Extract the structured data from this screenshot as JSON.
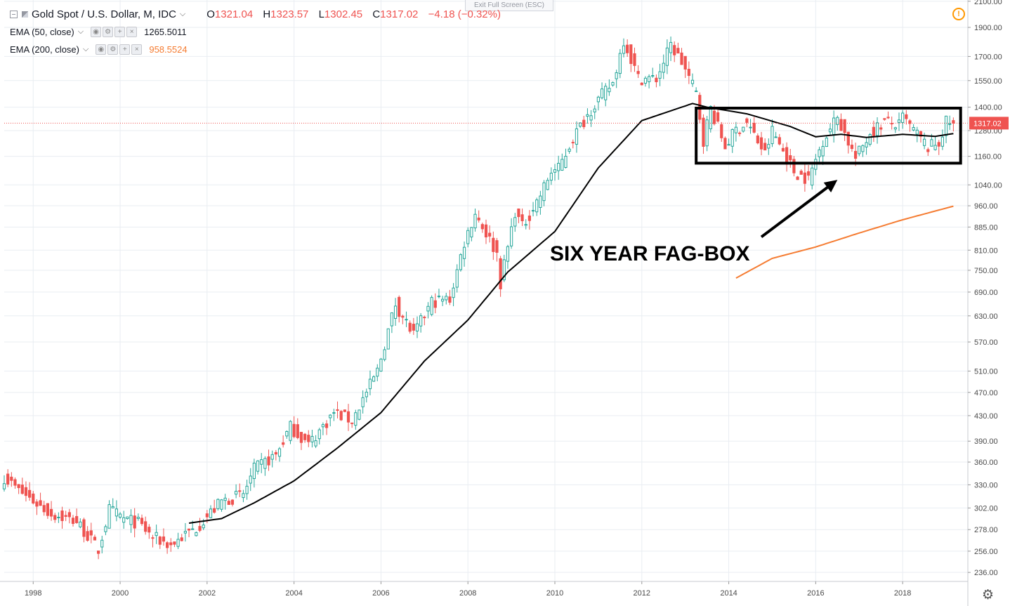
{
  "header": {
    "symbol": "Gold Spot / U.S. Dollar, M, IDC",
    "ohlc": {
      "o_label": "O",
      "o": "1321.04",
      "h_label": "H",
      "h": "1323.57",
      "l_label": "L",
      "l": "1302.45",
      "c_label": "C",
      "c": "1317.02"
    },
    "change": "−4.18 (−0.32%)"
  },
  "indicators": [
    {
      "name": "EMA (50, close)",
      "value": "1265.5011",
      "color": "#131722"
    },
    {
      "name": "EMA (200, close)",
      "value": "958.5524",
      "color": "#f57c32"
    }
  ],
  "exit_fullscreen": "Exit Full Screen (ESC)",
  "icons": {
    "warning": "warning-icon",
    "settings": "gear-icon",
    "collapse": "collapse-icon"
  },
  "colors": {
    "up": "#26a69a",
    "down": "#ef5350",
    "ema50": "#000000",
    "ema200": "#f57c32",
    "price_line": "#ef5350",
    "grid": "#e9edf2"
  },
  "chart_data": {
    "type": "candlestick",
    "timeframe": "monthly",
    "xlim": [
      "1997-05",
      "2019-07"
    ],
    "ylim": [
      228,
      2110
    ],
    "y_scale": "log",
    "grid": true,
    "y_ticks": [
      236,
      256,
      278,
      302,
      330,
      360,
      390,
      430,
      470,
      510,
      570,
      630,
      690,
      750,
      810,
      885,
      960,
      1040,
      1160,
      1280,
      1400,
      1550,
      1700,
      1900,
      2100
    ],
    "y_tick_labels": [
      "236.00",
      "256.00",
      "278.00",
      "302.00",
      "330.00",
      "360.00",
      "390.00",
      "430.00",
      "470.00",
      "510.00",
      "570.00",
      "630.00",
      "690.00",
      "750.00",
      "810.00",
      "885.00",
      "960.00",
      "1040.00",
      "1160.00",
      "1280.00",
      "1400.00",
      "1550.00",
      "1700.00",
      "1900.00",
      "2100.00"
    ],
    "x_ticks": [
      "1998",
      "2000",
      "2002",
      "2004",
      "2006",
      "2008",
      "2010",
      "2012",
      "2014",
      "2016",
      "2018"
    ],
    "last_price": 1317.02,
    "last_price_label": "1317.02",
    "price_anchors": [
      [
        "1997-05",
        340
      ],
      [
        "1997-09",
        323
      ],
      [
        "1998-06",
        295
      ],
      [
        "1999-01",
        287
      ],
      [
        "1999-07",
        257
      ],
      [
        "1999-10",
        300
      ],
      [
        "2000-02",
        290
      ],
      [
        "2000-06",
        285
      ],
      [
        "2000-10",
        270
      ],
      [
        "2001-03",
        262
      ],
      [
        "2001-06",
        270
      ],
      [
        "2001-10",
        280
      ],
      [
        "2002-05",
        310
      ],
      [
        "2002-11",
        318
      ],
      [
        "2003-02",
        350
      ],
      [
        "2003-08",
        370
      ],
      [
        "2003-12",
        412
      ],
      [
        "2004-05",
        385
      ],
      [
        "2004-12",
        435
      ],
      [
        "2005-05",
        422
      ],
      [
        "2005-12",
        510
      ],
      [
        "2006-05",
        660
      ],
      [
        "2006-10",
        585
      ],
      [
        "2007-03",
        665
      ],
      [
        "2007-08",
        672
      ],
      [
        "2007-12",
        835
      ],
      [
        "2008-03",
        935
      ],
      [
        "2008-09",
        800
      ],
      [
        "2008-10",
        715
      ],
      [
        "2009-02",
        940
      ],
      [
        "2009-04",
        885
      ],
      [
        "2009-09",
        1000
      ],
      [
        "2009-12",
        1095
      ],
      [
        "2010-02",
        1105
      ],
      [
        "2010-06",
        1245
      ],
      [
        "2010-12",
        1420
      ],
      [
        "2011-05",
        1535
      ],
      [
        "2011-08",
        1815
      ],
      [
        "2011-12",
        1565
      ],
      [
        "2012-05",
        1560
      ],
      [
        "2012-09",
        1775
      ],
      [
        "2012-12",
        1665
      ],
      [
        "2013-04",
        1475
      ],
      [
        "2013-06",
        1235
      ],
      [
        "2013-08",
        1395
      ],
      [
        "2013-12",
        1205
      ],
      [
        "2014-03",
        1285
      ],
      [
        "2014-06",
        1320
      ],
      [
        "2014-11",
        1170
      ],
      [
        "2015-01",
        1280
      ],
      [
        "2015-07",
        1095
      ],
      [
        "2015-11",
        1062
      ],
      [
        "2016-03",
        1235
      ],
      [
        "2016-07",
        1350
      ],
      [
        "2016-12",
        1150
      ],
      [
        "2017-04",
        1270
      ],
      [
        "2017-08",
        1325
      ],
      [
        "2017-12",
        1305
      ],
      [
        "2018-01",
        1345
      ],
      [
        "2018-08",
        1200
      ],
      [
        "2018-11",
        1222
      ],
      [
        "2019-01",
        1321
      ],
      [
        "2019-03",
        1317
      ]
    ],
    "ema50_anchors": [
      [
        "2001-08",
        285
      ],
      [
        "2002-05",
        290
      ],
      [
        "2003-02",
        308
      ],
      [
        "2004-01",
        335
      ],
      [
        "2005-01",
        380
      ],
      [
        "2006-01",
        435
      ],
      [
        "2007-01",
        530
      ],
      [
        "2008-01",
        620
      ],
      [
        "2008-12",
        745
      ],
      [
        "2010-01",
        870
      ],
      [
        "2011-01",
        1110
      ],
      [
        "2012-01",
        1330
      ],
      [
        "2013-03",
        1420
      ],
      [
        "2013-07",
        1400
      ],
      [
        "2014-06",
        1365
      ],
      [
        "2015-06",
        1300
      ],
      [
        "2016-01",
        1250
      ],
      [
        "2016-08",
        1262
      ],
      [
        "2017-03",
        1247
      ],
      [
        "2018-01",
        1262
      ],
      [
        "2018-10",
        1252
      ],
      [
        "2019-03",
        1265.5
      ]
    ],
    "ema200_anchors": [
      [
        "2014-03",
        728
      ],
      [
        "2015-01",
        785
      ],
      [
        "2016-01",
        820
      ],
      [
        "2017-01",
        865
      ],
      [
        "2018-01",
        910
      ],
      [
        "2019-03",
        958.5
      ]
    ],
    "annotations": [
      {
        "type": "text",
        "text": "SIX YEAR FAG-BOX"
      },
      {
        "type": "box",
        "from": [
          "2013-04",
          1395
        ],
        "to": [
          "2019-05",
          1130
        ]
      },
      {
        "type": "arrow",
        "from": [
          "2014-10",
          852
        ],
        "to": [
          "2016-07",
          1060
        ]
      }
    ]
  }
}
